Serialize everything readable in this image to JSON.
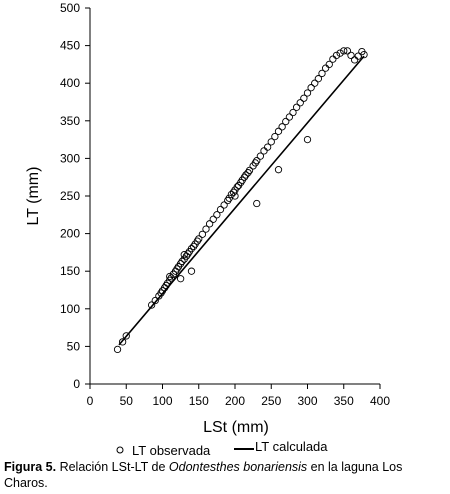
{
  "chart_data": {
    "type": "scatter",
    "xlabel": "LSt (mm)",
    "ylabel": "LT (mm)",
    "xlim": [
      0,
      400
    ],
    "ylim": [
      0,
      500
    ],
    "x_ticks": [
      "0",
      "50",
      "100",
      "150",
      "200",
      "250",
      "300",
      "350",
      "400"
    ],
    "y_ticks": [
      "0",
      "50",
      "100",
      "150",
      "200",
      "250",
      "300",
      "350",
      "400",
      "450",
      "500"
    ],
    "grid": false,
    "legend_position": "bottom",
    "series": [
      {
        "name": "LT observada",
        "kind": "points",
        "marker": "open-circle",
        "x": [
          38,
          45,
          50,
          85,
          90,
          95,
          98,
          100,
          103,
          105,
          107,
          110,
          112,
          115,
          118,
          120,
          122,
          125,
          127,
          130,
          133,
          135,
          137,
          140,
          143,
          145,
          148,
          150,
          155,
          160,
          165,
          170,
          175,
          180,
          185,
          190,
          192,
          195,
          198,
          200,
          203,
          205,
          208,
          210,
          213,
          215,
          218,
          220,
          225,
          228,
          230,
          235,
          240,
          245,
          250,
          255,
          260,
          265,
          270,
          275,
          280,
          285,
          290,
          295,
          300,
          305,
          310,
          315,
          320,
          325,
          330,
          335,
          340,
          345,
          350,
          355,
          360,
          365,
          370,
          375,
          378,
          110,
          125,
          140,
          200,
          230,
          260,
          300,
          130
        ],
        "y": [
          46,
          56,
          64,
          105,
          111,
          117,
          121,
          124,
          128,
          131,
          134,
          138,
          141,
          146,
          150,
          153,
          156,
          160,
          163,
          166,
          170,
          173,
          176,
          180,
          183,
          186,
          190,
          193,
          199,
          206,
          213,
          219,
          225,
          232,
          238,
          244,
          247,
          252,
          255,
          258,
          262,
          264,
          268,
          271,
          275,
          278,
          281,
          284,
          290,
          294,
          297,
          303,
          310,
          315,
          322,
          329,
          336,
          342,
          349,
          355,
          361,
          368,
          374,
          380,
          387,
          394,
          400,
          406,
          413,
          420,
          425,
          432,
          437,
          440,
          443,
          443,
          437,
          431,
          436,
          442,
          438,
          143,
          140,
          150,
          250,
          240,
          285,
          325,
          172
        ]
      },
      {
        "name": "LT calculada",
        "kind": "line",
        "x": [
          40,
          378
        ],
        "y": [
          52,
          436
        ]
      }
    ]
  },
  "caption": {
    "label": "Figura 5.",
    "text_before": " Relación LSt-LT de ",
    "species": "Odontesthes bonariensis",
    "text_after": " en la laguna Los Charos."
  },
  "colors": {
    "ink": "#000000",
    "background": "#ffffff"
  }
}
